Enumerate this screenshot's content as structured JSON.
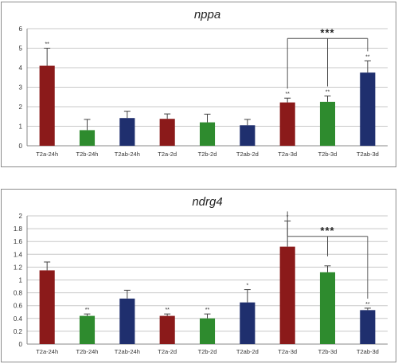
{
  "chart_data": [
    {
      "type": "bar",
      "title": "nppa",
      "categories": [
        "T2a-24h",
        "T2b-24h",
        "T2ab-24h",
        "T2a-2d",
        "T2b-2d",
        "T2ab-2d",
        "T2a-3d",
        "T2b-3d",
        "T2ab-3d"
      ],
      "values": [
        4.1,
        0.8,
        1.42,
        1.38,
        1.2,
        1.05,
        2.22,
        2.25,
        3.75
      ],
      "errors": [
        0.9,
        0.55,
        0.35,
        0.25,
        0.42,
        0.3,
        0.22,
        0.3,
        0.6
      ],
      "colors": [
        "#8b1a1a",
        "#2e8b2e",
        "#1f2f6e",
        "#8b1a1a",
        "#2e8b2e",
        "#1f2f6e",
        "#8b1a1a",
        "#2e8b2e",
        "#1f2f6e"
      ],
      "significance": [
        "**",
        "",
        "",
        "",
        "",
        "",
        "**",
        "**",
        "**"
      ],
      "ylim": [
        0,
        6
      ],
      "yticks": [
        "0",
        "1",
        "2",
        "3",
        "4",
        "5",
        "6"
      ],
      "grid": true,
      "bracket": {
        "from": 6,
        "to": 8,
        "center": 7,
        "label": "***",
        "level": 5.5
      }
    },
    {
      "type": "bar",
      "title": "ndrg4",
      "categories": [
        "T2a-24h",
        "T2b-24h",
        "T2ab-24h",
        "T2a-2d",
        "T2b-2d",
        "T2ab-2d",
        "T2a-3d",
        "T2b-3d",
        "T2ab-3d"
      ],
      "values": [
        1.15,
        0.44,
        0.71,
        0.44,
        0.4,
        0.65,
        1.52,
        1.12,
        0.53
      ],
      "errors": [
        0.13,
        0.03,
        0.13,
        0.03,
        0.07,
        0.2,
        0.4,
        0.1,
        0.03
      ],
      "colors": [
        "#8b1a1a",
        "#2e8b2e",
        "#1f2f6e",
        "#8b1a1a",
        "#2e8b2e",
        "#1f2f6e",
        "#8b1a1a",
        "#2e8b2e",
        "#1f2f6e"
      ],
      "significance": [
        "",
        "**",
        "",
        "**",
        "**",
        "*",
        "*",
        "",
        "**"
      ],
      "ylim": [
        0,
        2
      ],
      "yticks": [
        "0",
        "0.2",
        "0.4",
        "0.6",
        "0.8",
        "1",
        "1.2",
        "1.4",
        "1.6",
        "1.8",
        "2"
      ],
      "grid": true,
      "bracket": {
        "from": 6,
        "to": 8,
        "center": 7,
        "label": "***",
        "level": 1.68
      }
    }
  ]
}
